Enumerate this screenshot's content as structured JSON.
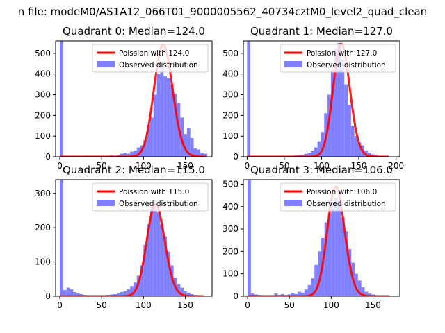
{
  "figure": {
    "suptitle": "n file: modeM0/AS1A12_066T01_9000005562_40734cztM0_level2_quad_clean"
  },
  "colors": {
    "observed": "#8080ff",
    "poisson": "#ff0000"
  },
  "chart_data": [
    {
      "type": "bar",
      "title": "Quadrant 0: Median=124.0",
      "xlim": [
        -5,
        182
      ],
      "ylim": [
        0,
        560
      ],
      "xticks": [
        0,
        50,
        100,
        150
      ],
      "yticks": [
        0,
        100,
        200,
        300,
        400,
        500
      ],
      "legend_position": "top-right",
      "legend": [
        "Poission with 124.0",
        "Observed distribution"
      ],
      "series": [
        {
          "name": "Observed distribution",
          "kind": "histogram",
          "bin_edges": [
            0,
            4,
            8,
            12,
            16,
            20,
            24,
            28,
            32,
            36,
            40,
            44,
            48,
            52,
            56,
            60,
            64,
            68,
            72,
            76,
            80,
            84,
            88,
            92,
            96,
            100,
            104,
            108,
            112,
            116,
            120,
            124,
            128,
            132,
            136,
            140,
            144,
            148,
            152,
            156,
            160,
            164,
            168,
            172,
            176
          ],
          "values": [
            560,
            5,
            4,
            4,
            3,
            3,
            3,
            3,
            4,
            3,
            4,
            4,
            5,
            4,
            5,
            6,
            5,
            7,
            15,
            20,
            15,
            25,
            30,
            45,
            55,
            80,
            155,
            190,
            300,
            400,
            440,
            390,
            380,
            350,
            305,
            260,
            190,
            110,
            140,
            90,
            40,
            35,
            20,
            15
          ]
        },
        {
          "name": "Poission with 124.0",
          "kind": "line",
          "mu": 124.0,
          "scale": 540,
          "x_range": [
            0,
            174
          ]
        }
      ]
    },
    {
      "type": "bar",
      "title": "Quadrant 1: Median=127.0",
      "xlim": [
        -5,
        205
      ],
      "ylim": [
        0,
        560
      ],
      "xticks": [
        0,
        50,
        100,
        150,
        200
      ],
      "yticks": [
        0,
        100,
        200,
        300,
        400,
        500
      ],
      "legend_position": "top-right",
      "legend": [
        "Poission with 127.0",
        "Observed distribution"
      ],
      "series": [
        {
          "name": "Observed distribution",
          "kind": "histogram",
          "bin_edges": [
            0,
            4.5,
            9,
            13.5,
            18,
            22.5,
            27,
            31.5,
            36,
            40.5,
            45,
            49.5,
            54,
            58.5,
            63,
            67.5,
            72,
            76.5,
            81,
            85.5,
            90,
            94.5,
            99,
            103.5,
            108,
            112.5,
            117,
            121.5,
            126,
            130.5,
            135,
            139.5,
            144,
            148.5,
            153,
            157.5,
            162,
            166.5,
            171,
            175.5,
            180,
            184.5,
            189,
            193.5
          ],
          "values": [
            560,
            4,
            3,
            3,
            3,
            3,
            3,
            3,
            3,
            3,
            4,
            4,
            5,
            5,
            6,
            7,
            10,
            14,
            20,
            30,
            45,
            75,
            120,
            210,
            300,
            420,
            525,
            550,
            470,
            350,
            250,
            150,
            100,
            70,
            55,
            30,
            20,
            12,
            8,
            5,
            4,
            3,
            2
          ]
        },
        {
          "name": "Poission with 127.0",
          "kind": "line",
          "mu": 127.0,
          "scale": 545,
          "x_range": [
            0,
            190
          ]
        }
      ]
    },
    {
      "type": "bar",
      "title": "Quadrant 2: Median=115.0",
      "xlim": [
        -5,
        182
      ],
      "ylim": [
        0,
        340
      ],
      "xticks": [
        0,
        50,
        100,
        150
      ],
      "yticks": [
        0,
        100,
        200,
        300
      ],
      "legend_position": "top-right",
      "legend": [
        "Poission with 115.0",
        "Observed distribution"
      ],
      "series": [
        {
          "name": "Observed distribution",
          "kind": "histogram",
          "bin_edges": [
            0,
            4,
            8,
            12,
            16,
            20,
            24,
            28,
            32,
            36,
            40,
            44,
            48,
            52,
            56,
            60,
            64,
            68,
            72,
            76,
            80,
            84,
            88,
            92,
            96,
            100,
            104,
            108,
            112,
            116,
            120,
            124,
            128,
            132,
            136,
            140,
            144,
            148,
            152,
            156,
            160,
            164,
            168,
            172
          ],
          "values": [
            340,
            18,
            25,
            20,
            12,
            8,
            6,
            4,
            3,
            3,
            3,
            3,
            3,
            3,
            4,
            5,
            6,
            8,
            12,
            15,
            20,
            30,
            40,
            60,
            90,
            150,
            210,
            260,
            280,
            245,
            210,
            175,
            130,
            90,
            55,
            35,
            25,
            15,
            10,
            6,
            4,
            3,
            2
          ]
        },
        {
          "name": "Poission with 115.0",
          "kind": "line",
          "mu": 115.0,
          "scale": 268,
          "x_range": [
            0,
            172
          ]
        }
      ]
    },
    {
      "type": "bar",
      "title": "Quadrant 3: Median=106.0",
      "xlim": [
        -5,
        182
      ],
      "ylim": [
        0,
        520
      ],
      "xticks": [
        0,
        50,
        100,
        150
      ],
      "yticks": [
        0,
        100,
        200,
        300,
        400,
        500
      ],
      "legend_position": "top-right",
      "legend": [
        "Poission with 106.0",
        "Observed distribution"
      ],
      "series": [
        {
          "name": "Observed distribution",
          "kind": "histogram",
          "bin_edges": [
            0,
            4,
            8,
            12,
            16,
            20,
            24,
            28,
            32,
            36,
            40,
            44,
            48,
            52,
            56,
            60,
            64,
            68,
            72,
            76,
            80,
            84,
            88,
            92,
            96,
            100,
            104,
            108,
            112,
            116,
            120,
            124,
            128,
            132,
            136,
            140,
            144,
            148,
            152,
            156,
            160,
            164,
            168
          ],
          "values": [
            520,
            12,
            8,
            6,
            5,
            4,
            4,
            5,
            12,
            6,
            10,
            6,
            8,
            14,
            10,
            20,
            16,
            30,
            50,
            80,
            140,
            200,
            260,
            330,
            370,
            410,
            440,
            430,
            350,
            290,
            210,
            150,
            100,
            70,
            40,
            20,
            12,
            8,
            5,
            3,
            2,
            1
          ]
        },
        {
          "name": "Poission with 106.0",
          "kind": "line",
          "mu": 106.0,
          "scale": 490,
          "x_range": [
            0,
            170
          ]
        }
      ]
    }
  ]
}
